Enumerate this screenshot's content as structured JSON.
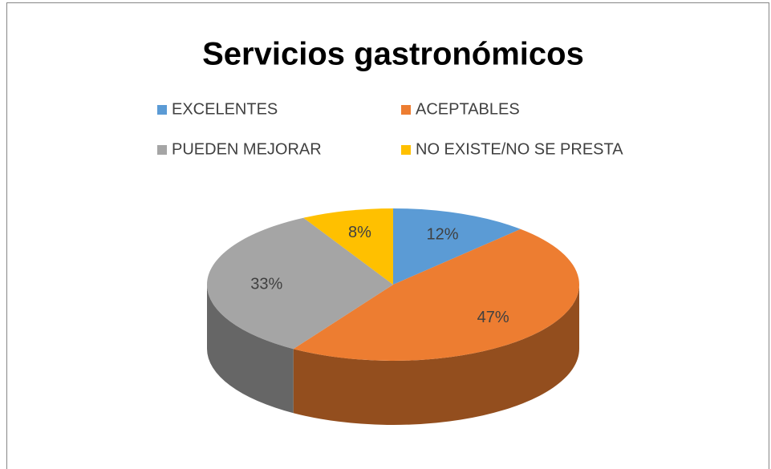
{
  "chart_data": {
    "type": "pie3d",
    "title": "Servicios gastronómicos",
    "categories": [
      "EXCELENTES",
      "ACEPTABLES",
      "PUEDEN MEJORAR",
      "NO EXISTE/NO SE PRESTA"
    ],
    "values": [
      12,
      47,
      33,
      8
    ],
    "value_labels": [
      "12%",
      "47%",
      "33%",
      "8%"
    ],
    "colors": [
      "#5b9bd5",
      "#ed7d31",
      "#a5a5a5",
      "#ffc000"
    ],
    "legend": "top"
  }
}
